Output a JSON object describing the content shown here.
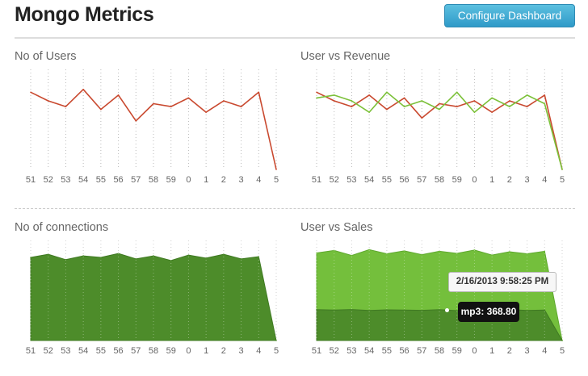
{
  "header": {
    "title": "Mongo Metrics",
    "configure_label": "Configure Dashboard"
  },
  "colors": {
    "users_line": "#c9492f",
    "revenue_line": "#7cc13a",
    "area_dark": "#4d8c2a",
    "area_light": "#74bf3c"
  },
  "tooltip": {
    "date": "2/16/2013 9:58:25 PM",
    "value": "mp3: 368.80"
  },
  "chart_data": [
    {
      "id": "users",
      "type": "line",
      "title": "No of Users",
      "x": [
        "51",
        "52",
        "53",
        "54",
        "55",
        "56",
        "57",
        "58",
        "59",
        "0",
        "1",
        "2",
        "3",
        "4",
        "5"
      ],
      "series": [
        {
          "name": "users",
          "values": [
            27,
            24,
            22,
            28,
            21,
            26,
            17,
            23,
            22,
            25,
            20,
            24,
            22,
            27,
            0
          ]
        }
      ],
      "ylim": [
        0,
        35
      ]
    },
    {
      "id": "revenue",
      "type": "line",
      "title": "User vs Revenue",
      "x": [
        "51",
        "52",
        "53",
        "54",
        "55",
        "56",
        "57",
        "58",
        "59",
        "0",
        "1",
        "2",
        "3",
        "4",
        "5"
      ],
      "series": [
        {
          "name": "users",
          "values": [
            27,
            24,
            22,
            26,
            21,
            25,
            18,
            23,
            22,
            24,
            20,
            24,
            22,
            26,
            0
          ]
        },
        {
          "name": "revenue",
          "values": [
            25,
            26,
            24,
            20,
            27,
            22,
            24,
            21,
            27,
            20,
            25,
            22,
            26,
            23,
            0
          ]
        }
      ],
      "ylim": [
        0,
        35
      ]
    },
    {
      "id": "connections",
      "type": "area",
      "title": "No of connections",
      "x": [
        "51",
        "52",
        "53",
        "54",
        "55",
        "56",
        "57",
        "58",
        "59",
        "0",
        "1",
        "2",
        "3",
        "4",
        "5"
      ],
      "series": [
        {
          "name": "connections",
          "values": [
            108,
            112,
            105,
            110,
            108,
            113,
            106,
            110,
            104,
            111,
            107,
            112,
            106,
            109,
            0
          ]
        }
      ],
      "ylim": [
        0,
        130
      ]
    },
    {
      "id": "sales",
      "type": "area",
      "title": "User vs Sales",
      "x": [
        "51",
        "52",
        "53",
        "54",
        "55",
        "56",
        "57",
        "58",
        "59",
        "0",
        "1",
        "2",
        "3",
        "4",
        "5"
      ],
      "series": [
        {
          "name": "mp3",
          "values": [
            370,
            365,
            372,
            360,
            368,
            366,
            362,
            370,
            358,
            369,
            364,
            371,
            360,
            366,
            0
          ]
        },
        {
          "name": "sales",
          "values": [
            1050,
            1080,
            1020,
            1090,
            1040,
            1075,
            1030,
            1070,
            1045,
            1085,
            1025,
            1065,
            1040,
            1070,
            0
          ]
        }
      ],
      "ylim": [
        0,
        1200
      ]
    }
  ]
}
